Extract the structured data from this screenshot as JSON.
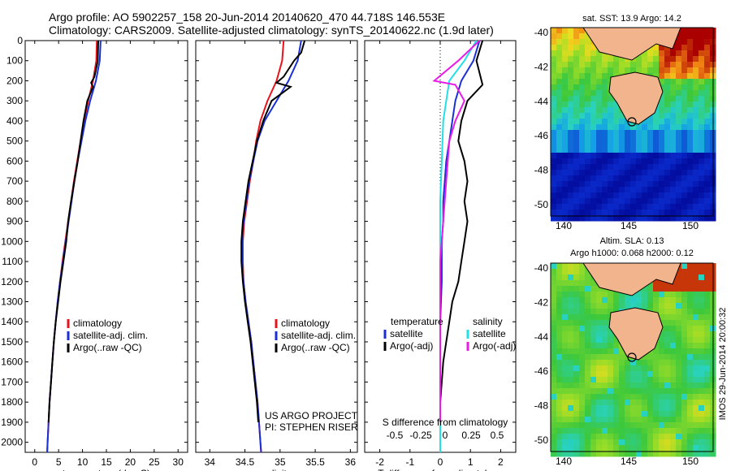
{
  "header": {
    "line1": "Argo profile: AO 5902257_158 20-Jun-2014 20140620_470 44.718S 146.553E",
    "line2": "Climatology: CARS2009. Satellite-adjusted climatology: synTS_20140622.nc (1.9d later)"
  },
  "colors": {
    "red": "#e8141c",
    "blue": "#1a2fd6",
    "black": "#000000",
    "cyan": "#22e0e6",
    "magenta": "#e81ce6"
  },
  "chart_data": [
    {
      "type": "line",
      "xlabel": "temperature (deg C)",
      "xlim": [
        -2,
        32
      ],
      "xticks": [
        0,
        5,
        10,
        15,
        20,
        25,
        30
      ],
      "ylim": [
        2050,
        0
      ],
      "yticks": [
        0,
        100,
        200,
        300,
        400,
        500,
        600,
        700,
        800,
        900,
        1000,
        1100,
        1200,
        1300,
        1400,
        1500,
        1600,
        1700,
        1800,
        1900,
        2000
      ],
      "legend": [
        "climatology",
        "satellite-adj. clim.",
        "Argo(..raw -QC)"
      ],
      "series": [
        {
          "name": "climatology",
          "color": "red",
          "points": [
            [
              13,
              0
            ],
            [
              12.9,
              100
            ],
            [
              12.2,
              200
            ],
            [
              11.2,
              300
            ],
            [
              10.3,
              400
            ],
            [
              9.6,
              500
            ],
            [
              8.9,
              600
            ],
            [
              8.2,
              700
            ],
            [
              7.6,
              800
            ],
            [
              7.0,
              900
            ],
            [
              6.4,
              1000
            ],
            [
              5.8,
              1100
            ],
            [
              5.3,
              1200
            ],
            [
              4.8,
              1300
            ],
            [
              4.4,
              1400
            ],
            [
              4.0,
              1500
            ],
            [
              3.7,
              1600
            ],
            [
              3.4,
              1700
            ],
            [
              3.1,
              1800
            ],
            [
              2.9,
              1900
            ],
            [
              2.7,
              2000
            ],
            [
              2.6,
              2050
            ]
          ]
        },
        {
          "name": "satellite-adj. clim.",
          "color": "blue",
          "points": [
            [
              13.8,
              0
            ],
            [
              13.6,
              100
            ],
            [
              12.8,
              200
            ],
            [
              11.6,
              300
            ],
            [
              10.6,
              400
            ],
            [
              9.8,
              500
            ],
            [
              9.0,
              600
            ],
            [
              8.3,
              700
            ],
            [
              7.7,
              800
            ],
            [
              7.1,
              900
            ],
            [
              6.5,
              1000
            ],
            [
              5.9,
              1100
            ],
            [
              5.3,
              1200
            ],
            [
              4.8,
              1300
            ],
            [
              4.4,
              1400
            ],
            [
              4.0,
              1500
            ],
            [
              3.7,
              1600
            ],
            [
              3.4,
              1700
            ],
            [
              3.1,
              1800
            ],
            [
              2.9,
              1900
            ],
            [
              2.7,
              2000
            ],
            [
              2.6,
              2050
            ]
          ]
        },
        {
          "name": "Argo(..raw -QC)",
          "color": "black",
          "points": [
            [
              13.3,
              0
            ],
            [
              13.2,
              100
            ],
            [
              12.5,
              180
            ],
            [
              11.8,
              210
            ],
            [
              12.2,
              230
            ],
            [
              11.0,
              300
            ],
            [
              10.2,
              400
            ],
            [
              9.6,
              500
            ],
            [
              9.0,
              600
            ],
            [
              8.3,
              700
            ],
            [
              7.6,
              800
            ],
            [
              7.0,
              900
            ],
            [
              6.6,
              1000
            ],
            [
              6.0,
              1100
            ],
            [
              5.4,
              1200
            ],
            [
              4.9,
              1300
            ],
            [
              4.4,
              1400
            ],
            [
              4.0,
              1500
            ],
            [
              3.7,
              1600
            ],
            [
              3.4,
              1700
            ],
            [
              3.1,
              1800
            ],
            [
              2.9,
              1900
            ]
          ]
        }
      ]
    },
    {
      "type": "line",
      "xlabel": "salinity",
      "xlim": [
        33.8,
        36.1
      ],
      "xticks": [
        34,
        34.5,
        35,
        35.5,
        36
      ],
      "ylim": [
        2050,
        0
      ],
      "legend": [
        "climatology",
        "satellite-adj. clim.",
        "Argo(..raw -QC)"
      ],
      "annotation": [
        "US ARGO PROJECT",
        "PI: STEPHEN RISER"
      ],
      "series": [
        {
          "name": "climatology",
          "color": "red",
          "points": [
            [
              35.05,
              0
            ],
            [
              35.03,
              100
            ],
            [
              34.95,
              200
            ],
            [
              34.82,
              300
            ],
            [
              34.72,
              400
            ],
            [
              34.66,
              500
            ],
            [
              34.62,
              600
            ],
            [
              34.57,
              700
            ],
            [
              34.53,
              800
            ],
            [
              34.49,
              900
            ],
            [
              34.47,
              1000
            ],
            [
              34.47,
              1100
            ],
            [
              34.48,
              1200
            ],
            [
              34.51,
              1300
            ],
            [
              34.55,
              1400
            ],
            [
              34.59,
              1500
            ],
            [
              34.62,
              1600
            ],
            [
              34.65,
              1700
            ],
            [
              34.68,
              1800
            ],
            [
              34.7,
              1900
            ],
            [
              34.72,
              2000
            ],
            [
              34.73,
              2050
            ]
          ]
        },
        {
          "name": "satellite-adj. clim.",
          "color": "blue",
          "points": [
            [
              35.3,
              0
            ],
            [
              35.25,
              100
            ],
            [
              35.12,
              200
            ],
            [
              34.95,
              300
            ],
            [
              34.78,
              400
            ],
            [
              34.68,
              500
            ],
            [
              34.62,
              600
            ],
            [
              34.56,
              700
            ],
            [
              34.52,
              800
            ],
            [
              34.48,
              900
            ],
            [
              34.46,
              1000
            ],
            [
              34.46,
              1100
            ],
            [
              34.48,
              1200
            ],
            [
              34.51,
              1300
            ],
            [
              34.55,
              1400
            ],
            [
              34.59,
              1500
            ],
            [
              34.62,
              1600
            ],
            [
              34.65,
              1700
            ],
            [
              34.68,
              1800
            ],
            [
              34.7,
              1900
            ],
            [
              34.72,
              2000
            ],
            [
              34.73,
              2050
            ]
          ]
        },
        {
          "name": "Argo(..raw -QC)",
          "color": "black",
          "points": [
            [
              35.35,
              0
            ],
            [
              35.3,
              60
            ],
            [
              35.2,
              100
            ],
            [
              35.05,
              180
            ],
            [
              34.95,
              210
            ],
            [
              35.15,
              230
            ],
            [
              34.88,
              300
            ],
            [
              34.76,
              400
            ],
            [
              34.67,
              500
            ],
            [
              34.61,
              600
            ],
            [
              34.55,
              700
            ],
            [
              34.51,
              800
            ],
            [
              34.47,
              900
            ],
            [
              34.45,
              1000
            ],
            [
              34.45,
              1100
            ],
            [
              34.47,
              1200
            ],
            [
              34.5,
              1300
            ],
            [
              34.54,
              1400
            ],
            [
              34.58,
              1500
            ],
            [
              34.61,
              1600
            ],
            [
              34.64,
              1700
            ],
            [
              34.67,
              1800
            ],
            [
              34.69,
              1900
            ]
          ]
        }
      ]
    },
    {
      "type": "line",
      "xlabel_top": "S difference from climatology",
      "xlabel": "T difference from climatology",
      "xlim": [
        -2.5,
        2.5
      ],
      "xticks": [
        -2,
        -1,
        0,
        1,
        2
      ],
      "xticks_top": [
        "-0.5",
        "-0.25",
        "0",
        "0.25",
        "0.5"
      ],
      "ylim": [
        2050,
        0
      ],
      "legend_temperature": [
        "temperature",
        "satellite",
        "Argo(-adj)"
      ],
      "legend_salinity": [
        "salinity",
        "satellite",
        "Argo(-adj)"
      ],
      "series": [
        {
          "name": "temperature satellite",
          "color": "blue",
          "points": [
            [
              1.3,
              0
            ],
            [
              1.1,
              100
            ],
            [
              0.7,
              200
            ],
            [
              0.5,
              300
            ],
            [
              0.4,
              400
            ],
            [
              0.3,
              500
            ],
            [
              0.2,
              600
            ],
            [
              0.15,
              700
            ],
            [
              0.1,
              800
            ],
            [
              0.1,
              900
            ],
            [
              0.05,
              1000
            ],
            [
              0.05,
              1200
            ],
            [
              0,
              1400
            ],
            [
              0,
              2050
            ]
          ]
        },
        {
          "name": "temperature Argo(-adj)",
          "color": "black",
          "points": [
            [
              1.4,
              0
            ],
            [
              1.2,
              100
            ],
            [
              1.4,
              220
            ],
            [
              0.9,
              300
            ],
            [
              0.7,
              400
            ],
            [
              0.6,
              500
            ],
            [
              0.8,
              600
            ],
            [
              0.9,
              700
            ],
            [
              0.8,
              800
            ],
            [
              0.9,
              900
            ],
            [
              0.8,
              1000
            ],
            [
              0.7,
              1100
            ],
            [
              0.6,
              1200
            ],
            [
              0.4,
              1300
            ],
            [
              0.3,
              1400
            ],
            [
              0.2,
              1500
            ],
            [
              0.1,
              1600
            ],
            [
              0.05,
              1700
            ],
            [
              0,
              1800
            ],
            [
              0,
              1900
            ]
          ]
        },
        {
          "name": "salinity satellite",
          "color": "cyan",
          "points": [
            [
              1.2,
              0
            ],
            [
              0.8,
              100
            ],
            [
              0.3,
              200
            ],
            [
              0.2,
              300
            ],
            [
              0.1,
              400
            ],
            [
              0.05,
              600
            ],
            [
              0,
              800
            ],
            [
              0,
              2050
            ]
          ]
        },
        {
          "name": "salinity Argo(-adj)",
          "color": "magenta",
          "points": [
            [
              1.3,
              0
            ],
            [
              0.6,
              100
            ],
            [
              -0.2,
              200
            ],
            [
              0.5,
              220
            ],
            [
              0.8,
              300
            ],
            [
              0.5,
              400
            ],
            [
              0.3,
              500
            ],
            [
              0.2,
              700
            ],
            [
              0.1,
              900
            ],
            [
              0,
              1100
            ],
            [
              0,
              1900
            ]
          ]
        }
      ]
    }
  ],
  "maps": [
    {
      "title": "sat. SST: 13.9 Argo: 14.2",
      "xticks": [
        "140",
        "145",
        "150"
      ],
      "yticks": [
        "-40",
        "-42",
        "-44",
        "-46",
        "-48",
        "-50"
      ],
      "field": "sst"
    },
    {
      "title_line1": "Altim. SLA: 0.13",
      "title_line2": "Argo h1000: 0.068 h2000: 0.12",
      "xticks": [
        "140",
        "145",
        "150"
      ],
      "yticks": [
        "-40",
        "-42",
        "-44",
        "-46",
        "-48",
        "-50"
      ],
      "field": "sla",
      "side_label": "IMOS 29-Jun-2014 20:00:32"
    }
  ]
}
